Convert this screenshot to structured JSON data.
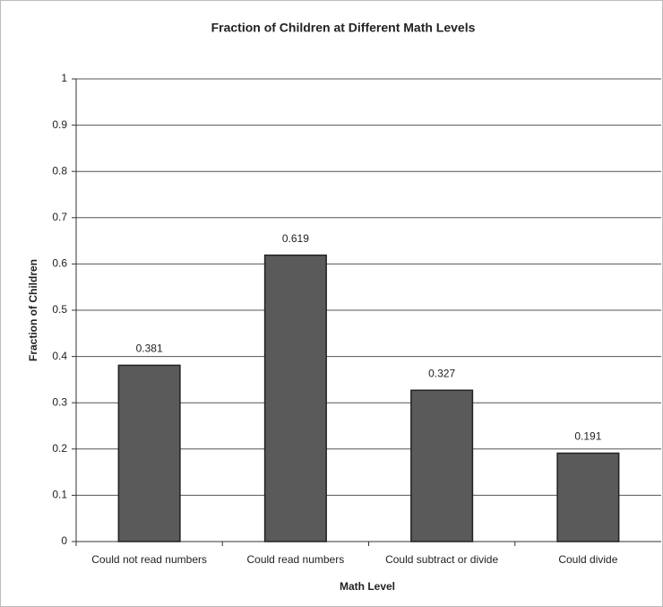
{
  "chart_data": {
    "type": "bar",
    "title": "Fraction of Children at Different Math Levels",
    "x_label": "Math Level",
    "y_label": "Fraction of Children",
    "categories": [
      "Could not read numbers",
      "Could read numbers",
      "Could subtract or divide",
      "Could divide"
    ],
    "values": [
      0.381,
      0.619,
      0.327,
      0.191
    ],
    "color": "#5a5a5a",
    "ylim": [
      0,
      1
    ],
    "yticks": [
      0,
      0.1,
      0.2,
      0.3,
      0.4,
      0.5,
      0.6,
      0.7,
      0.8,
      0.9,
      1
    ],
    "grid": true
  }
}
